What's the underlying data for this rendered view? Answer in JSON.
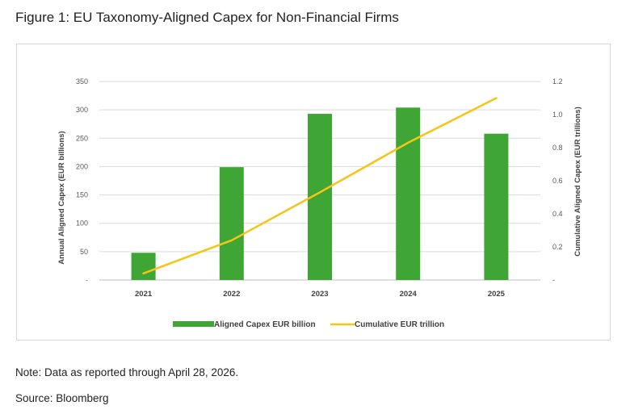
{
  "figure": {
    "title": "Figure 1: EU Taxonomy-Aligned Capex for Non-Financial Firms",
    "note": "Note: Data as reported through April 28, 2026.",
    "source": "Source: Bloomberg"
  },
  "chart_data": {
    "type": "bar",
    "categories": [
      "2021",
      "2022",
      "2023",
      "2024",
      "2025"
    ],
    "series": [
      {
        "name": "Aligned Capex EUR billion",
        "type": "bar",
        "axis": "left",
        "color": "#3fa535",
        "values": [
          48,
          199,
          293,
          304,
          258
        ]
      },
      {
        "name": "Cumulative EUR trillion",
        "type": "line",
        "axis": "right",
        "color": "#f5c518",
        "values": [
          0.04,
          0.24,
          0.53,
          0.83,
          1.1
        ]
      }
    ],
    "ylabel": "Annual Aligned Capex (EUR billions)",
    "y2label": "Cumulative Aligned Capex (EUR trillions)",
    "ylim": [
      0,
      350
    ],
    "y2lim": [
      0,
      1.2
    ],
    "yticks": [
      "-",
      "50",
      "100",
      "150",
      "200",
      "250",
      "300",
      "350"
    ],
    "y2ticks": [
      "-",
      "0.2",
      "0.4",
      "0.6",
      "0.8",
      "1.0",
      "1.2"
    ],
    "grid": true,
    "legend_position": "bottom"
  }
}
